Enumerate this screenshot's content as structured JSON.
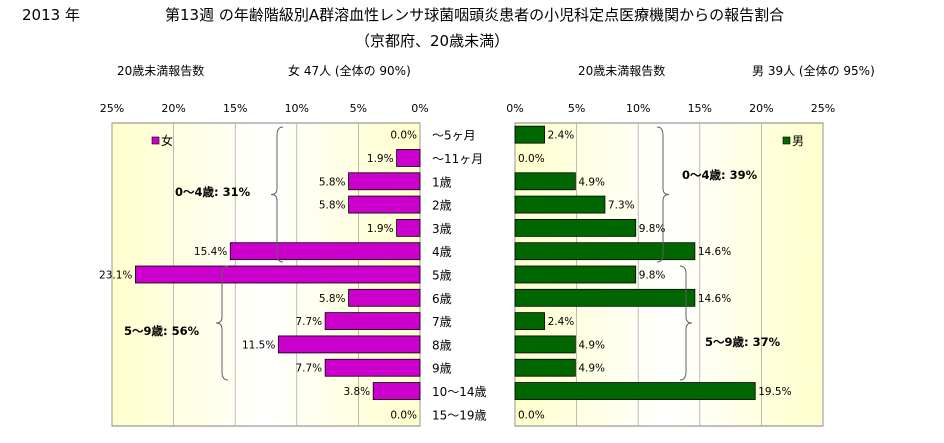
{
  "header": {
    "year": "2013 年",
    "title_line1": "第13週 の年齢階級別A群溶血性レンサ球菌咽頭炎患者の小児科定点医療機関からの報告割合",
    "title_line2": "（京都府、20歳未満）"
  },
  "female": {
    "report_label": "20歳未満報告数",
    "summary": "女 47人 (全体の 90%)",
    "legend": "女",
    "bracket_0_4": "0～4歳: 31%",
    "bracket_5_9": "5～9歳: 56%"
  },
  "male": {
    "report_label": "20歳未満報告数",
    "summary": "男 39人 (全体の 95%)",
    "legend": "男",
    "bracket_0_4": "0～4歳: 39%",
    "bracket_5_9": "5～9歳: 37%"
  },
  "colors": {
    "female_bar": "#cc00cc",
    "male_bar": "#006600",
    "plot_gradient_edge": "#ffffcc",
    "plot_gradient_center": "#ffffff"
  },
  "chart_data": [
    {
      "type": "bar",
      "orientation": "horizontal-reversed",
      "categories": [
        "～5ヶ月",
        "～11ヶ月",
        "1歳",
        "2歳",
        "3歳",
        "4歳",
        "5歳",
        "6歳",
        "7歳",
        "8歳",
        "9歳",
        "10～14歳",
        "15～19歳"
      ],
      "series": [
        {
          "name": "女",
          "values": [
            0.0,
            1.9,
            5.8,
            5.8,
            1.9,
            15.4,
            23.1,
            5.8,
            7.7,
            11.5,
            7.7,
            3.8,
            0.0
          ]
        }
      ],
      "data_labels": [
        "0.0%",
        "1.9%",
        "5.8%",
        "5.8%",
        "1.9%",
        "15.4%",
        "23.1%",
        "5.8%",
        "7.7%",
        "11.5%",
        "7.7%",
        "3.8%",
        "0.0%"
      ],
      "xlim": [
        0,
        25
      ],
      "xticks": [
        "25%",
        "20%",
        "15%",
        "10%",
        "5%",
        "0%"
      ],
      "grid": true,
      "legend": "top-left"
    },
    {
      "type": "bar",
      "orientation": "horizontal",
      "categories": [
        "～5ヶ月",
        "～11ヶ月",
        "1歳",
        "2歳",
        "3歳",
        "4歳",
        "5歳",
        "6歳",
        "7歳",
        "8歳",
        "9歳",
        "10～14歳",
        "15～19歳"
      ],
      "series": [
        {
          "name": "男",
          "values": [
            2.4,
            0.0,
            4.9,
            7.3,
            9.8,
            14.6,
            9.8,
            14.6,
            2.4,
            4.9,
            4.9,
            19.5,
            0.0
          ]
        }
      ],
      "data_labels": [
        "2.4%",
        "0.0%",
        "4.9%",
        "7.3%",
        "9.8%",
        "14.6%",
        "9.8%",
        "14.6%",
        "2.4%",
        "4.9%",
        "4.9%",
        "19.5%",
        "0.0%"
      ],
      "xlim": [
        0,
        25
      ],
      "xticks": [
        "0%",
        "5%",
        "10%",
        "15%",
        "20%",
        "25%"
      ],
      "grid": true,
      "legend": "top-right"
    }
  ]
}
